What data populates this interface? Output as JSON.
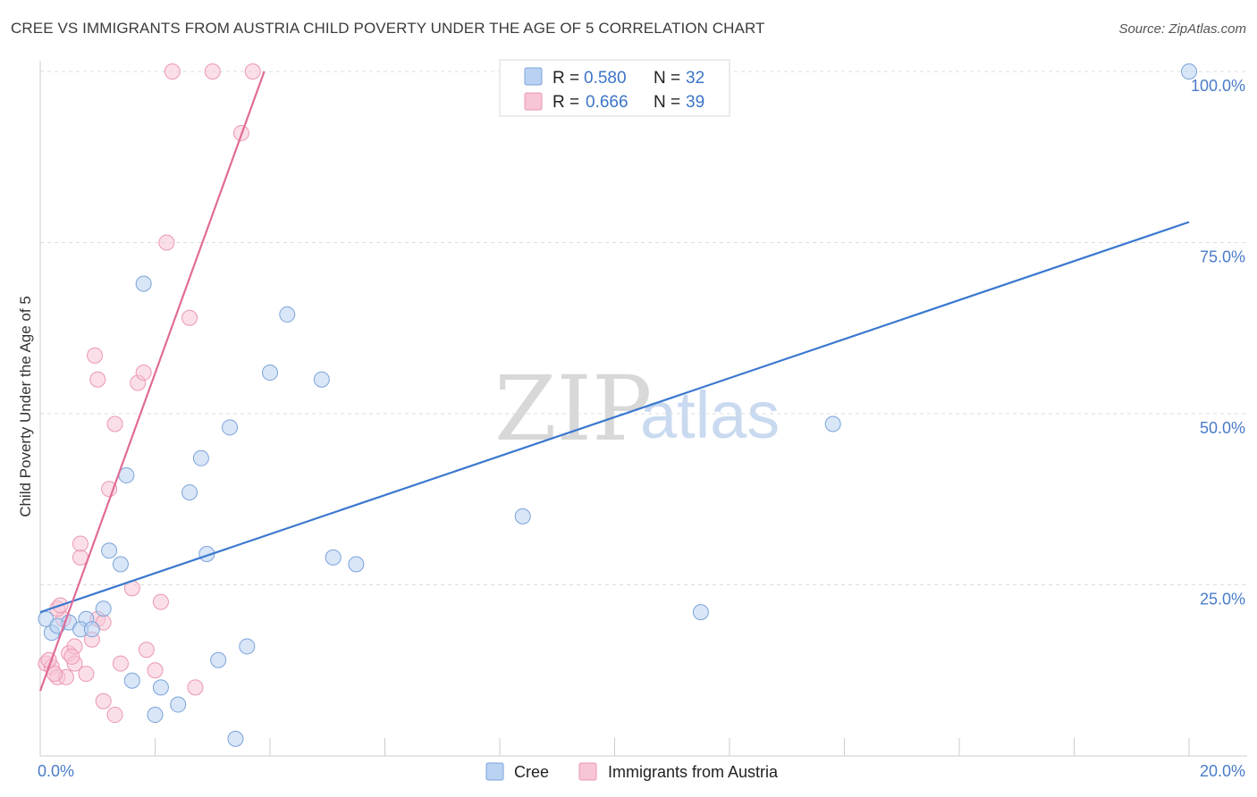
{
  "title": "CREE VS IMMIGRANTS FROM AUSTRIA CHILD POVERTY UNDER THE AGE OF 5 CORRELATION CHART",
  "source": "Source: ZipAtlas.com",
  "watermark": {
    "zip": "ZIP",
    "atlas": "atlas"
  },
  "colors": {
    "cree_fill": "#b9d2f2",
    "cree_stroke": "#7aa3d9",
    "cree_line": "#3a78cf",
    "austria_fill": "#f7c5d5",
    "austria_stroke": "#eb97b2",
    "austria_line": "#e06b97",
    "tick_text": "#4a7cc9",
    "grid": "#dddddd"
  },
  "legend": {
    "series1": {
      "r_label": "R =",
      "r_value": "0.580",
      "n_label": "N =",
      "n_value": "32"
    },
    "series2": {
      "r_label": "R =",
      "r_value": "0.666",
      "n_label": "N =",
      "n_value": "39"
    }
  },
  "chart_data": {
    "type": "scatter",
    "title": "CREE VS IMMIGRANTS FROM AUSTRIA CHILD POVERTY UNDER THE AGE OF 5 CORRELATION CHART",
    "xlabel": "",
    "ylabel": "Child Poverty Under the Age of 5",
    "xlim": [
      0,
      20
    ],
    "ylim": [
      0,
      100
    ],
    "x_tick_labels": [
      "0.0%",
      "20.0%"
    ],
    "y_ticks": [
      25,
      50,
      75,
      100
    ],
    "y_tick_labels": [
      "25.0%",
      "50.0%",
      "75.0%",
      "100.0%"
    ],
    "series": [
      {
        "name": "Cree",
        "r": 0.58,
        "n": 32,
        "trend": {
          "x": [
            0,
            20
          ],
          "y": [
            21,
            78
          ]
        },
        "points": [
          [
            0.1,
            20
          ],
          [
            0.2,
            18
          ],
          [
            0.5,
            19.5
          ],
          [
            0.8,
            20
          ],
          [
            0.7,
            18.5
          ],
          [
            0.9,
            18.5
          ],
          [
            1.1,
            21.5
          ],
          [
            1.2,
            30
          ],
          [
            1.4,
            28
          ],
          [
            1.5,
            41
          ],
          [
            1.6,
            11
          ],
          [
            1.8,
            69
          ],
          [
            2.0,
            6
          ],
          [
            2.1,
            10
          ],
          [
            2.4,
            7.5
          ],
          [
            2.6,
            38.5
          ],
          [
            2.8,
            43.5
          ],
          [
            2.9,
            29.5
          ],
          [
            3.1,
            14
          ],
          [
            3.3,
            48
          ],
          [
            3.4,
            2.5
          ],
          [
            3.6,
            16
          ],
          [
            4.0,
            56
          ],
          [
            4.3,
            64.5
          ],
          [
            4.9,
            55
          ],
          [
            5.1,
            29
          ],
          [
            5.5,
            28
          ],
          [
            8.4,
            35
          ],
          [
            11.5,
            21
          ],
          [
            13.8,
            48.5
          ],
          [
            20.0,
            100
          ],
          [
            0.3,
            19
          ]
        ]
      },
      {
        "name": "Immigrants from Austria",
        "r": 0.666,
        "n": 39,
        "trend": {
          "x": [
            0,
            3.9
          ],
          "y": [
            9.5,
            100
          ]
        },
        "points": [
          [
            0.1,
            13.5
          ],
          [
            0.2,
            13
          ],
          [
            0.3,
            11.5
          ],
          [
            0.4,
            20
          ],
          [
            0.45,
            11.5
          ],
          [
            0.3,
            21.5
          ],
          [
            0.5,
            15
          ],
          [
            0.6,
            16
          ],
          [
            0.6,
            13.5
          ],
          [
            0.7,
            29
          ],
          [
            0.7,
            31
          ],
          [
            0.8,
            12
          ],
          [
            0.9,
            17
          ],
          [
            0.95,
            58.5
          ],
          [
            1.0,
            20
          ],
          [
            1.0,
            55
          ],
          [
            1.1,
            19.5
          ],
          [
            1.1,
            8
          ],
          [
            1.2,
            39
          ],
          [
            1.3,
            48.5
          ],
          [
            1.3,
            6
          ],
          [
            1.4,
            13.5
          ],
          [
            1.6,
            24.5
          ],
          [
            1.7,
            54.5
          ],
          [
            1.8,
            56
          ],
          [
            1.85,
            15.5
          ],
          [
            2.0,
            12.5
          ],
          [
            2.1,
            22.5
          ],
          [
            2.2,
            75
          ],
          [
            2.3,
            100
          ],
          [
            3.0,
            100
          ],
          [
            3.7,
            100
          ],
          [
            2.6,
            64
          ],
          [
            3.5,
            91
          ],
          [
            2.7,
            10
          ],
          [
            0.15,
            14
          ],
          [
            0.25,
            12
          ],
          [
            0.55,
            14.5
          ],
          [
            0.35,
            22
          ]
        ]
      }
    ]
  },
  "bottom_legend": {
    "series1": "Cree",
    "series2": "Immigrants from Austria"
  }
}
